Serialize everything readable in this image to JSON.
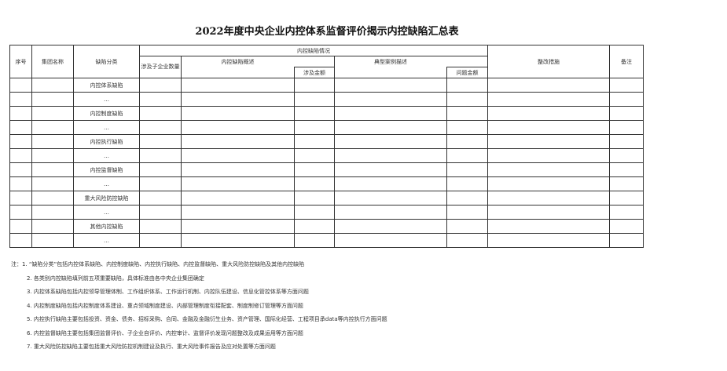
{
  "title": "2022年度中央企业内控体系监督评价揭示内控缺陷汇总表",
  "headers": {
    "seq": "序号",
    "group_name": "集团名称",
    "category": "缺陷分类",
    "situation": "内控缺陷情况",
    "sub_count": "涉及子企业数量",
    "summary": "内控缺陷概述",
    "amount": "涉及金额",
    "case_desc": "典型案例描述",
    "problem_amount": "问题金额",
    "rectification": "整改措施",
    "remarks": "备注"
  },
  "rows": [
    "内控体系缺陷",
    "…",
    "内控制度缺陷",
    "…",
    "内控执行缺陷",
    "…",
    "内控监督缺陷",
    "…",
    "重大风险防控缺陷",
    "…",
    "其他内控缺陷",
    "…"
  ],
  "notes": {
    "prefix": "注：",
    "items": [
      "1. “缺陷分类”包括内控体系缺陷、内控制度缺陷、内控执行缺陷、内控监督缺陷、重大风险防控缺陷及其他内控缺陷",
      "2. 各类别内控缺陷填列前五项重要缺陷，具体标准由各中央企业集团确定",
      "3. 内控体系缺陷包括内控领导管理体制、工作组织体系、工作运行机制、内控队伍建设、信息化管控体系等方面问题",
      "4. 内控制度缺陷包括内控制度体系建设、重点领域制度建设、内部管理制度衔接配套、制度制修订管理等方面问题",
      "5. 内控执行缺陷主要包括投资、资金、债务、招标采购、合同、金融及金融衍生业务、资产管理、国际化经营、工程项目承data等内控执行方面问题",
      "6. 内控监督缺陷主要包括集团监督评价、子企业自评价、内控审计、监督评价发现问题整改及成果运用等方面问题",
      "7. 重大风险防控缺陷主要包括重大风险防控机制建设及执行、重大风险事件报告及应对处置等方面问题"
    ]
  }
}
